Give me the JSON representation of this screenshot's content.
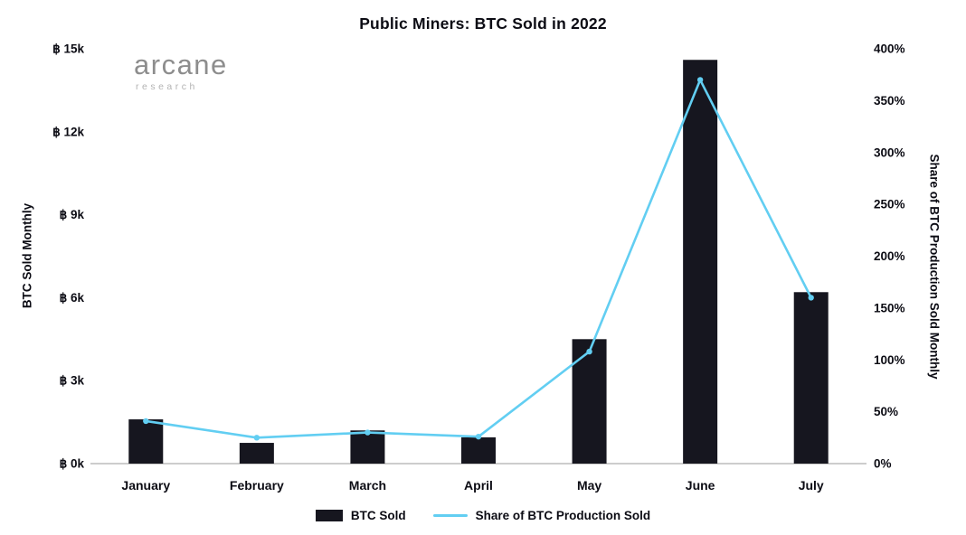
{
  "title": "Public Miners: BTC Sold in 2022",
  "logo": {
    "brand": "arcane",
    "sub": "research"
  },
  "legend": {
    "bar_label": "BTC Sold",
    "line_label": "Share of BTC Production Sold"
  },
  "chart_data": {
    "type": "bar+line",
    "title": "Public Miners: BTC Sold in 2022",
    "categories": [
      "January",
      "February",
      "March",
      "April",
      "May",
      "June",
      "July"
    ],
    "series": [
      {
        "name": "BTC Sold",
        "type": "bar",
        "axis": "left",
        "color": "#16161F",
        "values": [
          1600,
          750,
          1200,
          950,
          4500,
          14600,
          6200
        ]
      },
      {
        "name": "Share of BTC Production Sold",
        "type": "line",
        "axis": "right",
        "color": "#62CEF2",
        "values": [
          41,
          25,
          30,
          26,
          108,
          370,
          160
        ]
      }
    ],
    "left_axis": {
      "label": "BTC Sold Monthly",
      "min": 0,
      "max": 15000,
      "tick_values": [
        0,
        3000,
        6000,
        9000,
        12000,
        15000
      ],
      "tick_labels": [
        "฿ 0k",
        "฿ 3k",
        "฿ 6k",
        "฿ 9k",
        "฿ 12k",
        "฿ 15k"
      ]
    },
    "right_axis": {
      "label": "Share of BTC Production Sold Monthly",
      "min": 0,
      "max": 400,
      "tick_values": [
        0,
        50,
        100,
        150,
        200,
        250,
        300,
        350,
        400
      ],
      "tick_labels": [
        "0%",
        "50%",
        "100%",
        "150%",
        "200%",
        "250%",
        "300%",
        "350%",
        "400%"
      ]
    },
    "grid": false,
    "legend_position": "bottom",
    "text_color": "#0C0C14",
    "baseline_color": "#9B9B9B"
  }
}
